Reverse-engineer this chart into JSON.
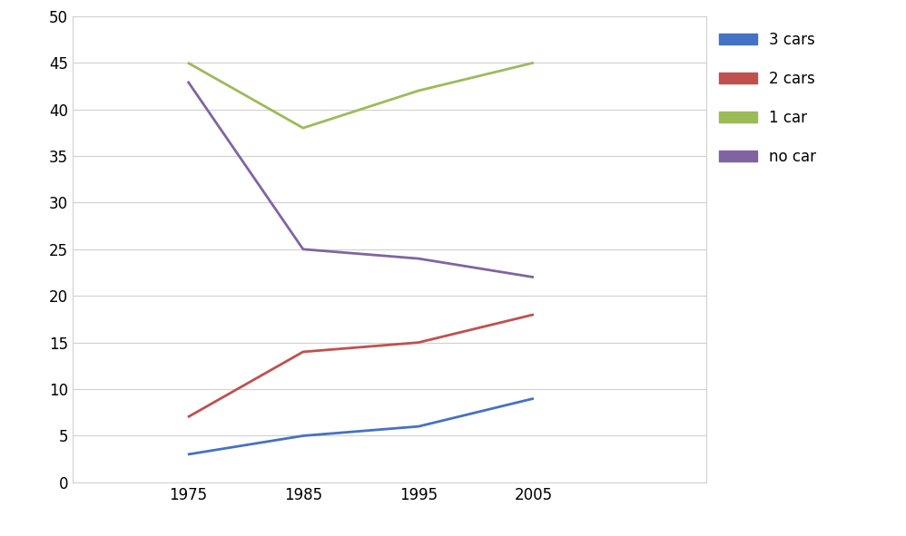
{
  "years": [
    1975,
    1985,
    1995,
    2005
  ],
  "series": {
    "3 cars": {
      "values": [
        3,
        5,
        6,
        9
      ],
      "color": "#4472C4"
    },
    "2 cars": {
      "values": [
        7,
        14,
        15,
        18
      ],
      "color": "#C0504D"
    },
    "1 car": {
      "values": [
        45,
        38,
        42,
        45
      ],
      "color": "#9BBB59"
    },
    "no car": {
      "values": [
        43,
        25,
        24,
        22
      ],
      "color": "#8064A2"
    }
  },
  "ylim": [
    0,
    50
  ],
  "yticks": [
    0,
    5,
    10,
    15,
    20,
    25,
    30,
    35,
    40,
    45,
    50
  ],
  "xticks": [
    1975,
    1985,
    1995,
    2005
  ],
  "legend_order": [
    "3 cars",
    "2 cars",
    "1 car",
    "no car"
  ],
  "background_color": "#ffffff",
  "grid_color": "#d0d0d0",
  "line_width": 2.0,
  "tick_fontsize": 12,
  "xlim_left": 1965,
  "xlim_right": 2020
}
